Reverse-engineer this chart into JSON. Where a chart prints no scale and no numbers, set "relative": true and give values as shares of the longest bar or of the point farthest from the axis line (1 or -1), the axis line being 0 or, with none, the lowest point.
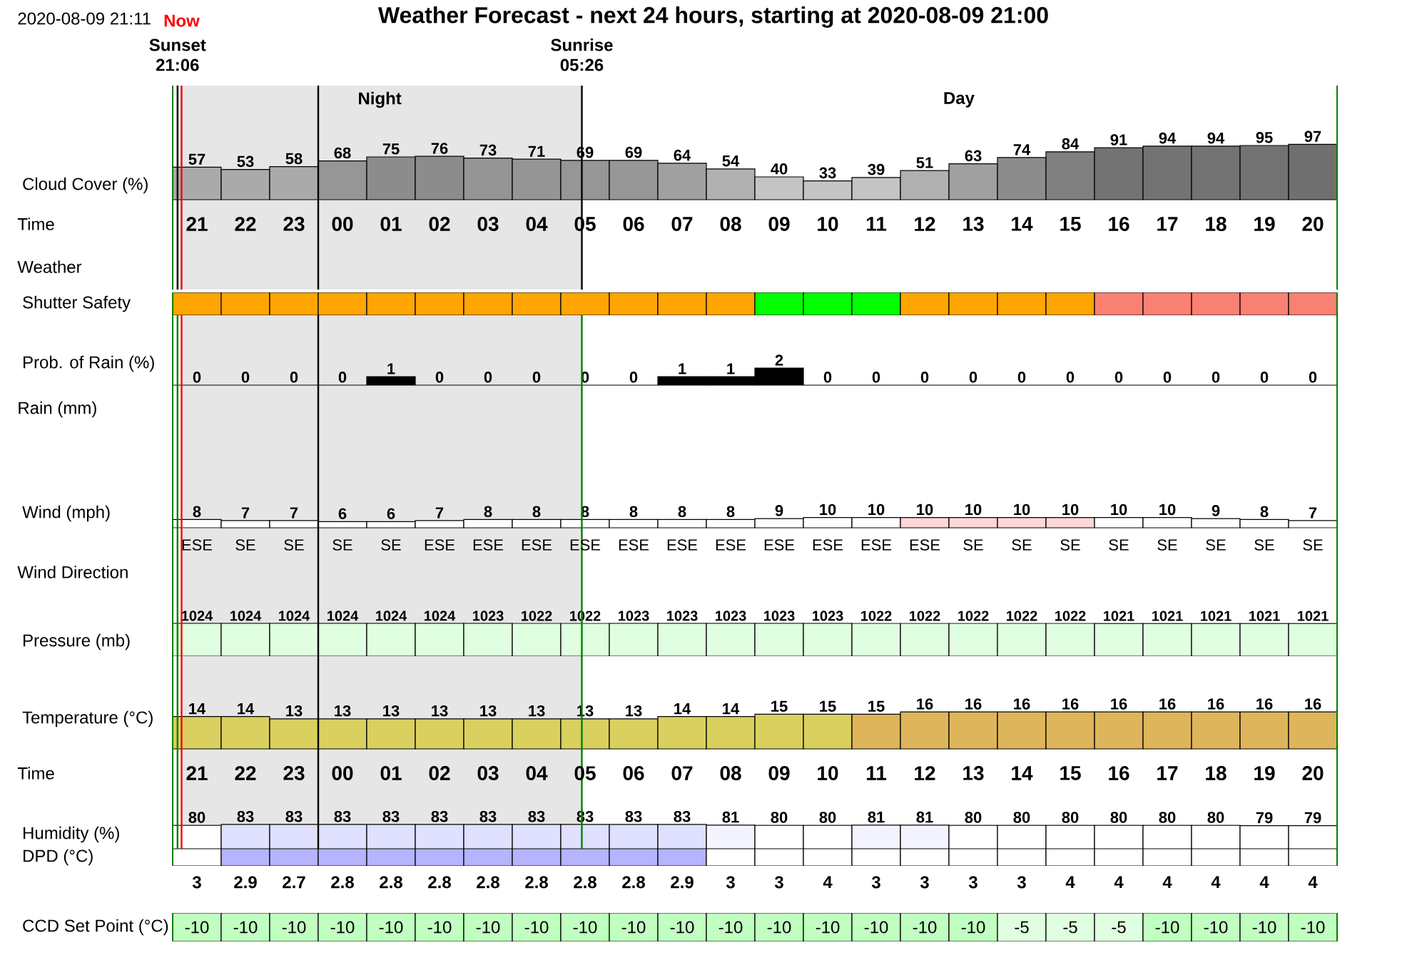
{
  "chart_data": [
    {
      "type": "bar",
      "title": "Weather Forecast - next 24 hours, starting at 2020-08-09 21:00",
      "annotations": [
        "2020-08-09 21:11",
        "Time",
        "Weather",
        "Day"
      ],
      "ylabel": "Cloud Cover (%)",
      "x": [
        "2020-08-09T21:30",
        "2020-08-09T22:30",
        "2020-08-09T23:30",
        "2020-08-10T00:30",
        "2020-08-10T01:30",
        "2020-08-10T02:30",
        "2020-08-10T03:30",
        "2020-08-10T04:30",
        "2020-08-10T05:30",
        "2020-08-10T06:30",
        "2020-08-10T07:30",
        "2020-08-10T08:30",
        "2020-08-10T09:30",
        "2020-08-10T10:30",
        "2020-08-10T11:30",
        "2020-08-10T12:30",
        "2020-08-10T13:30",
        "2020-08-10T14:30",
        "2020-08-10T15:30",
        "2020-08-10T16:30",
        "2020-08-10T17:30",
        "2020-08-10T18:30",
        "2020-08-10T19:30",
        "2020-08-10T20:30"
      ],
      "values": [
        57,
        53,
        58,
        68,
        75,
        76,
        73,
        71,
        69,
        69,
        64,
        54,
        40,
        33,
        39,
        51,
        63,
        74,
        84,
        91,
        94,
        94,
        95,
        97
      ],
      "colors": [
        "#aaaaaa",
        "#aaaaaa",
        "#aaaaaa",
        "#969696",
        "#8c8c8c",
        "#8c8c8c",
        "#959595",
        "#959595",
        "#969696",
        "#969696",
        "#a0a0a0",
        "#b0b0b0",
        "#c4c4c4",
        "#c4c4c4",
        "#c4c4c4",
        "#b0b0b0",
        "#a0a0a0",
        "#8c8c8c",
        "#808080",
        "#737373",
        "#737373",
        "#737373",
        "#737373",
        "#707070"
      ],
      "data_labels": true,
      "xlim": [
        "2020-08-09T21:00",
        "2020-08-10T21:00"
      ],
      "tick_labels": "x",
      "xticks": [
        {
          "value": "2020-08-09T21:30",
          "label": "21"
        },
        {
          "value": "2020-08-09T22:30",
          "label": "22"
        },
        {
          "value": "2020-08-09T23:30",
          "label": "23"
        },
        {
          "value": "2020-08-10T00:30",
          "label": "00"
        },
        {
          "value": "2020-08-10T01:30",
          "label": "01"
        },
        {
          "value": "2020-08-10T02:30",
          "label": "02"
        },
        {
          "value": "2020-08-10T03:30",
          "label": "03"
        },
        {
          "value": "2020-08-10T04:30",
          "label": "04"
        },
        {
          "value": "2020-08-10T05:30",
          "label": "05"
        },
        {
          "value": "2020-08-10T06:30",
          "label": "06"
        },
        {
          "value": "2020-08-10T07:30",
          "label": "07"
        },
        {
          "value": "2020-08-10T08:30",
          "label": "08"
        },
        {
          "value": "2020-08-10T09:30",
          "label": "09"
        },
        {
          "value": "2020-08-10T10:30",
          "label": "10"
        },
        {
          "value": "2020-08-10T11:30",
          "label": "11"
        },
        {
          "value": "2020-08-10T12:30",
          "label": "12"
        },
        {
          "value": "2020-08-10T13:30",
          "label": "13"
        },
        {
          "value": "2020-08-10T14:30",
          "label": "14"
        },
        {
          "value": "2020-08-10T15:30",
          "label": "15"
        },
        {
          "value": "2020-08-10T16:30",
          "label": "16"
        },
        {
          "value": "2020-08-10T17:30",
          "label": "17"
        },
        {
          "value": "2020-08-10T18:30",
          "label": "18"
        },
        {
          "value": "2020-08-10T19:30",
          "label": "19"
        },
        {
          "value": "2020-08-10T20:30",
          "label": "20"
        }
      ],
      "bands": [
        {
          "axis": "x",
          "from": "2020-08-09T21:06",
          "to": "2020-08-10T05:26",
          "color": "#e6e6e6",
          "label": "Night"
        }
      ],
      "ref_lines": [
        {
          "axis": "x",
          "value": "2020-08-09T21:06",
          "label": "Sunset 21:06",
          "color": "#000000"
        },
        {
          "axis": "x",
          "value": "2020-08-09T21:11",
          "label": "Now",
          "color": "#ff0000"
        },
        {
          "axis": "x",
          "value": "2020-08-10T00:00",
          "color": "#000000"
        },
        {
          "axis": "x",
          "value": "2020-08-10T05:26",
          "label": "Sunrise 05:26",
          "color": "#000000"
        }
      ]
    },
    {
      "type": "bar",
      "ylabel": "Shutter Safety",
      "relative": true,
      "x": [
        "2020-08-09T21:30",
        "2020-08-09T22:30",
        "2020-08-09T23:30",
        "2020-08-10T00:30",
        "2020-08-10T01:30",
        "2020-08-10T02:30",
        "2020-08-10T03:30",
        "2020-08-10T04:30",
        "2020-08-10T05:30",
        "2020-08-10T06:30",
        "2020-08-10T07:30",
        "2020-08-10T08:30",
        "2020-08-10T09:30",
        "2020-08-10T10:30",
        "2020-08-10T11:30",
        "2020-08-10T12:30",
        "2020-08-10T13:30",
        "2020-08-10T14:30",
        "2020-08-10T15:30",
        "2020-08-10T16:30",
        "2020-08-10T17:30",
        "2020-08-10T18:30",
        "2020-08-10T19:30",
        "2020-08-10T20:30"
      ],
      "values": [
        1,
        1,
        1,
        1,
        1,
        1,
        1,
        1,
        1,
        1,
        1,
        1,
        1,
        1,
        1,
        1,
        1,
        1,
        1,
        1,
        1,
        1,
        1,
        1
      ],
      "colors": [
        "#ffa500",
        "#ffa500",
        "#ffa500",
        "#ffa500",
        "#ffa500",
        "#ffa500",
        "#ffa500",
        "#ffa500",
        "#ffa500",
        "#ffa500",
        "#ffa500",
        "#ffa500",
        "#00ff00",
        "#00ff00",
        "#00ff00",
        "#ffa500",
        "#ffa500",
        "#ffa500",
        "#ffa500",
        "#fa8072",
        "#fa8072",
        "#fa8072",
        "#fa8072",
        "#fa8072"
      ],
      "xlim": [
        "2020-08-09T21:00",
        "2020-08-10T21:00"
      ],
      "tick_labels": false
    },
    {
      "type": "bar",
      "ylabel": "Prob. of Rain (%)",
      "annotations": [
        "Rain (mm)"
      ],
      "x": [
        "2020-08-09T21:30",
        "2020-08-09T22:30",
        "2020-08-09T23:30",
        "2020-08-10T00:30",
        "2020-08-10T01:30",
        "2020-08-10T02:30",
        "2020-08-10T03:30",
        "2020-08-10T04:30",
        "2020-08-10T05:30",
        "2020-08-10T06:30",
        "2020-08-10T07:30",
        "2020-08-10T08:30",
        "2020-08-10T09:30",
        "2020-08-10T10:30",
        "2020-08-10T11:30",
        "2020-08-10T12:30",
        "2020-08-10T13:30",
        "2020-08-10T14:30",
        "2020-08-10T15:30",
        "2020-08-10T16:30",
        "2020-08-10T17:30",
        "2020-08-10T18:30",
        "2020-08-10T19:30",
        "2020-08-10T20:30"
      ],
      "values": [
        0,
        0,
        0,
        0,
        1,
        0,
        0,
        0,
        0,
        0,
        1,
        1,
        2,
        0,
        0,
        0,
        0,
        0,
        0,
        0,
        0,
        0,
        0,
        0
      ],
      "color": "#000000",
      "data_labels": true,
      "xlim": [
        "2020-08-09T21:00",
        "2020-08-10T21:00"
      ],
      "tick_labels": false,
      "bands": [
        {
          "axis": "x",
          "from": "2020-08-09T21:11",
          "to": "2020-08-10T05:26",
          "color": "#e6e6e6"
        }
      ],
      "ref_lines": [
        {
          "axis": "x",
          "value": "2020-08-09T21:06",
          "color": "#008000"
        },
        {
          "axis": "x",
          "value": "2020-08-09T21:11",
          "color": "#ff0000"
        },
        {
          "axis": "x",
          "value": "2020-08-10T00:00",
          "color": "#000000"
        },
        {
          "axis": "x",
          "value": "2020-08-10T05:26",
          "color": "#008000"
        }
      ]
    },
    {
      "type": "bar",
      "ylabel": "Wind (mph)",
      "annotations": [
        "Wind Direction",
        "ESE",
        "SE",
        "SE",
        "SE",
        "SE",
        "ESE",
        "ESE",
        "ESE",
        "ESE",
        "ESE",
        "ESE",
        "ESE",
        "ESE",
        "ESE",
        "ESE",
        "ESE",
        "SE",
        "SE",
        "SE",
        "SE",
        "SE",
        "SE",
        "SE",
        "SE"
      ],
      "x": [
        "2020-08-09T21:30",
        "2020-08-09T22:30",
        "2020-08-09T23:30",
        "2020-08-10T00:30",
        "2020-08-10T01:30",
        "2020-08-10T02:30",
        "2020-08-10T03:30",
        "2020-08-10T04:30",
        "2020-08-10T05:30",
        "2020-08-10T06:30",
        "2020-08-10T07:30",
        "2020-08-10T08:30",
        "2020-08-10T09:30",
        "2020-08-10T10:30",
        "2020-08-10T11:30",
        "2020-08-10T12:30",
        "2020-08-10T13:30",
        "2020-08-10T14:30",
        "2020-08-10T15:30",
        "2020-08-10T16:30",
        "2020-08-10T17:30",
        "2020-08-10T18:30",
        "2020-08-10T19:30",
        "2020-08-10T20:30"
      ],
      "values": [
        8,
        7,
        7,
        6,
        6,
        7,
        8,
        8,
        8,
        8,
        8,
        8,
        9,
        10,
        10,
        10,
        10,
        10,
        10,
        10,
        10,
        9,
        8,
        7
      ],
      "colors": [
        "#ffffff",
        "#ffffff",
        "#ffffff",
        "#ffffff",
        "#ffffff",
        "#ffffff",
        "#ffffff",
        "#ffffff",
        "#ffffff",
        "#ffffff",
        "#ffffff",
        "#ffffff",
        "#ffffff",
        "#ffffff",
        "#ffffff",
        "#ffd6d6",
        "#ffd6d6",
        "#ffd6d6",
        "#ffd6d6",
        "#ffffff",
        "#ffffff",
        "#ffffff",
        "#ffffff",
        "#ffffff"
      ],
      "data_labels": true,
      "xlim": [
        "2020-08-09T21:00",
        "2020-08-10T21:00"
      ],
      "tick_labels": false,
      "bands": [
        {
          "axis": "x",
          "from": "2020-08-09T21:11",
          "to": "2020-08-10T05:26",
          "color": "#e6e6e6"
        }
      ],
      "ref_lines": [
        {
          "axis": "x",
          "value": "2020-08-09T21:06",
          "color": "#008000"
        },
        {
          "axis": "x",
          "value": "2020-08-09T21:11",
          "color": "#ff0000"
        },
        {
          "axis": "x",
          "value": "2020-08-10T00:00",
          "color": "#000000"
        },
        {
          "axis": "x",
          "value": "2020-08-10T05:26",
          "color": "#008000"
        }
      ]
    },
    {
      "type": "bar",
      "ylabel": "Pressure (mb)",
      "x": [
        "2020-08-09T21:30",
        "2020-08-09T22:30",
        "2020-08-09T23:30",
        "2020-08-10T00:30",
        "2020-08-10T01:30",
        "2020-08-10T02:30",
        "2020-08-10T03:30",
        "2020-08-10T04:30",
        "2020-08-10T05:30",
        "2020-08-10T06:30",
        "2020-08-10T07:30",
        "2020-08-10T08:30",
        "2020-08-10T09:30",
        "2020-08-10T10:30",
        "2020-08-10T11:30",
        "2020-08-10T12:30",
        "2020-08-10T13:30",
        "2020-08-10T14:30",
        "2020-08-10T15:30",
        "2020-08-10T16:30",
        "2020-08-10T17:30",
        "2020-08-10T18:30",
        "2020-08-10T19:30",
        "2020-08-10T20:30"
      ],
      "values": [
        1024,
        1024,
        1024,
        1024,
        1024,
        1024,
        1023,
        1022,
        1022,
        1023,
        1023,
        1023,
        1023,
        1023,
        1022,
        1022,
        1022,
        1022,
        1022,
        1021,
        1021,
        1021,
        1021,
        1021
      ],
      "color": "#e0ffe0",
      "data_labels": true,
      "xlim": [
        "2020-08-09T21:00",
        "2020-08-10T21:00"
      ],
      "tick_labels": false,
      "bands": [
        {
          "axis": "x",
          "from": "2020-08-09T21:11",
          "to": "2020-08-10T05:26",
          "color": "#e6e6e6"
        }
      ],
      "ref_lines": [
        {
          "axis": "x",
          "value": "2020-08-09T21:06",
          "color": "#008000"
        },
        {
          "axis": "x",
          "value": "2020-08-09T21:11",
          "color": "#ff0000"
        },
        {
          "axis": "x",
          "value": "2020-08-10T00:00",
          "color": "#000000"
        },
        {
          "axis": "x",
          "value": "2020-08-10T05:26",
          "color": "#008000"
        }
      ]
    },
    {
      "type": "bar",
      "ylabel": "Temperature (°C)",
      "annotations": [
        "Time"
      ],
      "x": [
        "2020-08-09T21:30",
        "2020-08-09T22:30",
        "2020-08-09T23:30",
        "2020-08-10T00:30",
        "2020-08-10T01:30",
        "2020-08-10T02:30",
        "2020-08-10T03:30",
        "2020-08-10T04:30",
        "2020-08-10T05:30",
        "2020-08-10T06:30",
        "2020-08-10T07:30",
        "2020-08-10T08:30",
        "2020-08-10T09:30",
        "2020-08-10T10:30",
        "2020-08-10T11:30",
        "2020-08-10T12:30",
        "2020-08-10T13:30",
        "2020-08-10T14:30",
        "2020-08-10T15:30",
        "2020-08-10T16:30",
        "2020-08-10T17:30",
        "2020-08-10T18:30",
        "2020-08-10T19:30",
        "2020-08-10T20:30"
      ],
      "values": [
        14,
        14,
        13,
        13,
        13,
        13,
        13,
        13,
        13,
        13,
        14,
        14,
        15,
        15,
        15,
        16,
        16,
        16,
        16,
        16,
        16,
        16,
        16,
        16
      ],
      "colors": [
        "#d9d05f",
        "#d9d05f",
        "#d9d05f",
        "#d9d05f",
        "#d9d05f",
        "#d9d05f",
        "#d9d05f",
        "#d9d05f",
        "#d9d05f",
        "#d9d05f",
        "#d9d05f",
        "#d9d05f",
        "#d9d05f",
        "#d9d05f",
        "#deb55a",
        "#deb55a",
        "#deb55a",
        "#deb55a",
        "#deb55a",
        "#deb55a",
        "#deb55a",
        "#deb55a",
        "#deb55a",
        "#deb55a"
      ],
      "data_labels": true,
      "xlim": [
        "2020-08-09T21:00",
        "2020-08-10T21:00"
      ],
      "tick_labels": "x",
      "xticks": [
        {
          "value": "2020-08-09T21:30",
          "label": "21"
        },
        {
          "value": "2020-08-09T22:30",
          "label": "22"
        },
        {
          "value": "2020-08-09T23:30",
          "label": "23"
        },
        {
          "value": "2020-08-10T00:30",
          "label": "00"
        },
        {
          "value": "2020-08-10T01:30",
          "label": "01"
        },
        {
          "value": "2020-08-10T02:30",
          "label": "02"
        },
        {
          "value": "2020-08-10T03:30",
          "label": "03"
        },
        {
          "value": "2020-08-10T04:30",
          "label": "04"
        },
        {
          "value": "2020-08-10T05:30",
          "label": "05"
        },
        {
          "value": "2020-08-10T06:30",
          "label": "06"
        },
        {
          "value": "2020-08-10T07:30",
          "label": "07"
        },
        {
          "value": "2020-08-10T08:30",
          "label": "08"
        },
        {
          "value": "2020-08-10T09:30",
          "label": "09"
        },
        {
          "value": "2020-08-10T10:30",
          "label": "10"
        },
        {
          "value": "2020-08-10T11:30",
          "label": "11"
        },
        {
          "value": "2020-08-10T12:30",
          "label": "12"
        },
        {
          "value": "2020-08-10T13:30",
          "label": "13"
        },
        {
          "value": "2020-08-10T14:30",
          "label": "14"
        },
        {
          "value": "2020-08-10T15:30",
          "label": "15"
        },
        {
          "value": "2020-08-10T16:30",
          "label": "16"
        },
        {
          "value": "2020-08-10T17:30",
          "label": "17"
        },
        {
          "value": "2020-08-10T18:30",
          "label": "18"
        },
        {
          "value": "2020-08-10T19:30",
          "label": "19"
        },
        {
          "value": "2020-08-10T20:30",
          "label": "20"
        }
      ],
      "bands": [
        {
          "axis": "x",
          "from": "2020-08-09T21:11",
          "to": "2020-08-10T05:26",
          "color": "#e6e6e6"
        }
      ],
      "ref_lines": [
        {
          "axis": "x",
          "value": "2020-08-09T21:06",
          "color": "#008000"
        },
        {
          "axis": "x",
          "value": "2020-08-09T21:11",
          "color": "#ff0000"
        },
        {
          "axis": "x",
          "value": "2020-08-10T00:00",
          "color": "#000000"
        },
        {
          "axis": "x",
          "value": "2020-08-10T05:26",
          "color": "#008000"
        }
      ]
    },
    {
      "type": "bar",
      "ylabel": "Humidity (%)",
      "x": [
        "2020-08-09T21:30",
        "2020-08-09T22:30",
        "2020-08-09T23:30",
        "2020-08-10T00:30",
        "2020-08-10T01:30",
        "2020-08-10T02:30",
        "2020-08-10T03:30",
        "2020-08-10T04:30",
        "2020-08-10T05:30",
        "2020-08-10T06:30",
        "2020-08-10T07:30",
        "2020-08-10T08:30",
        "2020-08-10T09:30",
        "2020-08-10T10:30",
        "2020-08-10T11:30",
        "2020-08-10T12:30",
        "2020-08-10T13:30",
        "2020-08-10T14:30",
        "2020-08-10T15:30",
        "2020-08-10T16:30",
        "2020-08-10T17:30",
        "2020-08-10T18:30",
        "2020-08-10T19:30",
        "2020-08-10T20:30"
      ],
      "values": [
        80,
        83,
        83,
        83,
        83,
        83,
        83,
        83,
        83,
        83,
        83,
        81,
        80,
        80,
        81,
        81,
        80,
        80,
        80,
        80,
        80,
        80,
        79,
        79
      ],
      "colors": [
        "#ffffff",
        "#e0e0ff",
        "#e0e0ff",
        "#e0e0ff",
        "#e0e0ff",
        "#e0e0ff",
        "#e0e0ff",
        "#e0e0ff",
        "#e0e0ff",
        "#e0e0ff",
        "#e0e0ff",
        "#f4f4ff",
        "#ffffff",
        "#ffffff",
        "#f4f4ff",
        "#f4f4ff",
        "#ffffff",
        "#ffffff",
        "#ffffff",
        "#ffffff",
        "#ffffff",
        "#ffffff",
        "#ffffff",
        "#ffffff"
      ],
      "data_labels": true,
      "xlim": [
        "2020-08-09T21:00",
        "2020-08-10T21:00"
      ],
      "tick_labels": false,
      "bands": [
        {
          "axis": "x",
          "from": "2020-08-09T21:11",
          "to": "2020-08-10T05:26",
          "color": "#e6e6e6"
        }
      ],
      "ref_lines": [
        {
          "axis": "x",
          "value": "2020-08-09T21:06",
          "color": "#008000"
        },
        {
          "axis": "x",
          "value": "2020-08-09T21:11",
          "color": "#ff0000"
        },
        {
          "axis": "x",
          "value": "2020-08-10T00:00",
          "color": "#000000"
        },
        {
          "axis": "x",
          "value": "2020-08-10T05:26",
          "color": "#008000"
        }
      ]
    },
    {
      "type": "heatmap",
      "categories": [
        "21",
        "22",
        "23",
        "00",
        "01",
        "02",
        "03",
        "04",
        "05",
        "06",
        "07",
        "08",
        "09",
        "10",
        "11",
        "12",
        "13",
        "14",
        "15",
        "16",
        "17",
        "18",
        "19",
        "20"
      ],
      "y_categories": [
        "DPD (°C)"
      ],
      "cells": [
        [
          3,
          2.9,
          2.7,
          2.8,
          2.8,
          2.8,
          2.8,
          2.8,
          2.8,
          2.8,
          2.9,
          3,
          3,
          4,
          3,
          3,
          3,
          3,
          4,
          4,
          4,
          4,
          4,
          4
        ]
      ],
      "colors": [
        "#ffffff",
        "#b4b4ff",
        "#b4b4ff",
        "#b4b4ff",
        "#b4b4ff",
        "#b4b4ff",
        "#b4b4ff",
        "#b4b4ff",
        "#b4b4ff",
        "#b4b4ff",
        "#b4b4ff",
        "#ffffff",
        "#ffffff",
        "#ffffff",
        "#ffffff",
        "#ffffff",
        "#ffffff",
        "#ffffff",
        "#ffffff",
        "#ffffff",
        "#ffffff",
        "#ffffff",
        "#ffffff",
        "#ffffff"
      ],
      "data_labels": true,
      "tick_labels": "y"
    },
    {
      "type": "heatmap",
      "categories": [
        "21",
        "22",
        "23",
        "00",
        "01",
        "02",
        "03",
        "04",
        "05",
        "06",
        "07",
        "08",
        "09",
        "10",
        "11",
        "12",
        "13",
        "14",
        "15",
        "16",
        "17",
        "18",
        "19",
        "20"
      ],
      "y_categories": [
        "CCD Set Point (°C)"
      ],
      "cells": [
        [
          -10,
          -10,
          -10,
          -10,
          -10,
          -10,
          -10,
          -10,
          -10,
          -10,
          -10,
          -10,
          -10,
          -10,
          -10,
          -10,
          -10,
          -5,
          -5,
          -5,
          -10,
          -10,
          -10,
          -10
        ]
      ],
      "colors": [
        "#c0ffc0",
        "#c0ffc0",
        "#c0ffc0",
        "#c0ffc0",
        "#c0ffc0",
        "#c0ffc0",
        "#c0ffc0",
        "#c0ffc0",
        "#c0ffc0",
        "#c0ffc0",
        "#c0ffc0",
        "#c0ffc0",
        "#c0ffc0",
        "#c0ffc0",
        "#c0ffc0",
        "#c0ffc0",
        "#c0ffc0",
        "#e0ffe0",
        "#e0ffe0",
        "#e0ffe0",
        "#c0ffc0",
        "#c0ffc0",
        "#c0ffc0",
        "#c0ffc0"
      ],
      "data_labels": true,
      "tick_labels": "y"
    }
  ]
}
